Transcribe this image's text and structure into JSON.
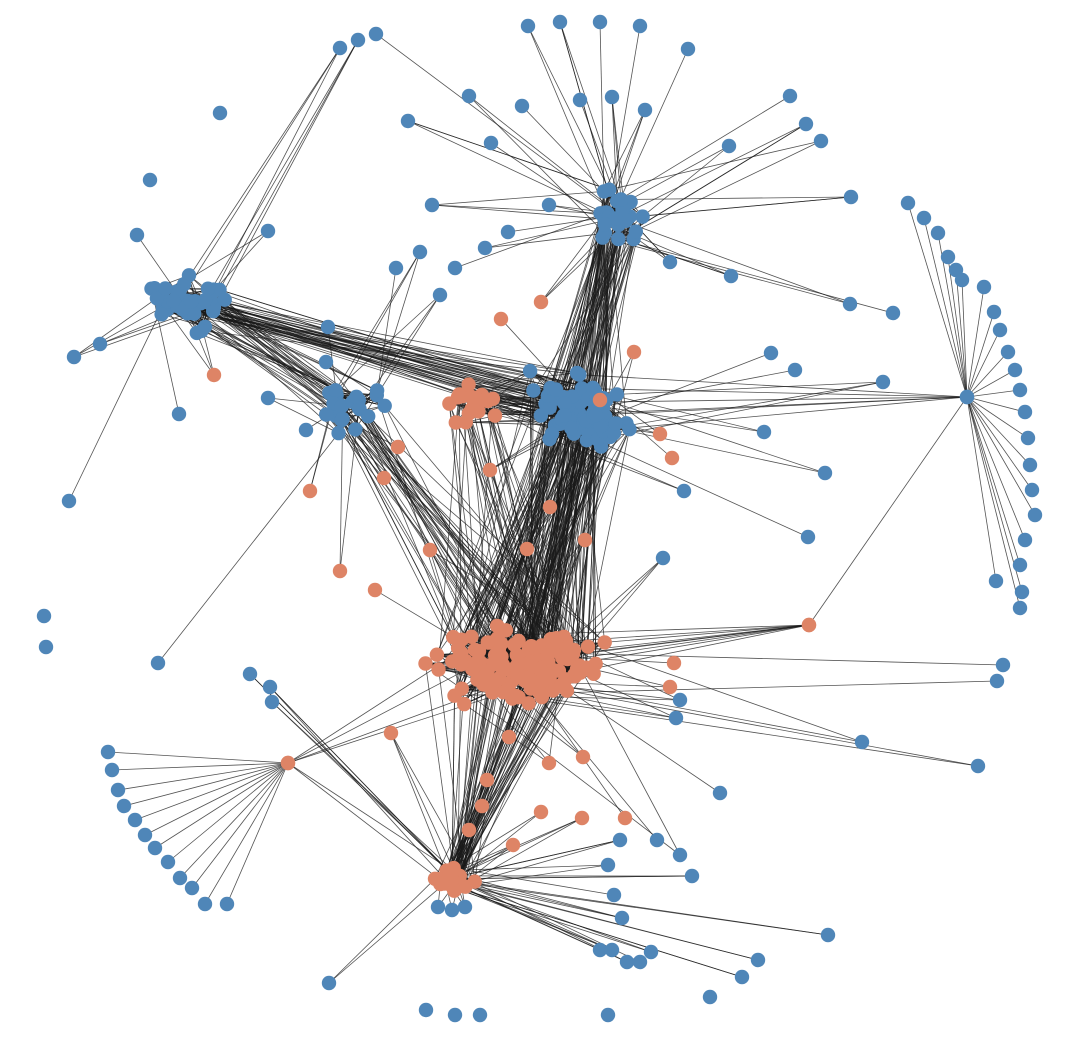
{
  "diagram": {
    "type": "network-graph",
    "communities": [
      {
        "id": "community-a",
        "color": "#4f86b8"
      },
      {
        "id": "community-b",
        "color": "#de8466"
      }
    ],
    "edge_color": "#1a1a1a",
    "background": "#ffffff"
  }
}
